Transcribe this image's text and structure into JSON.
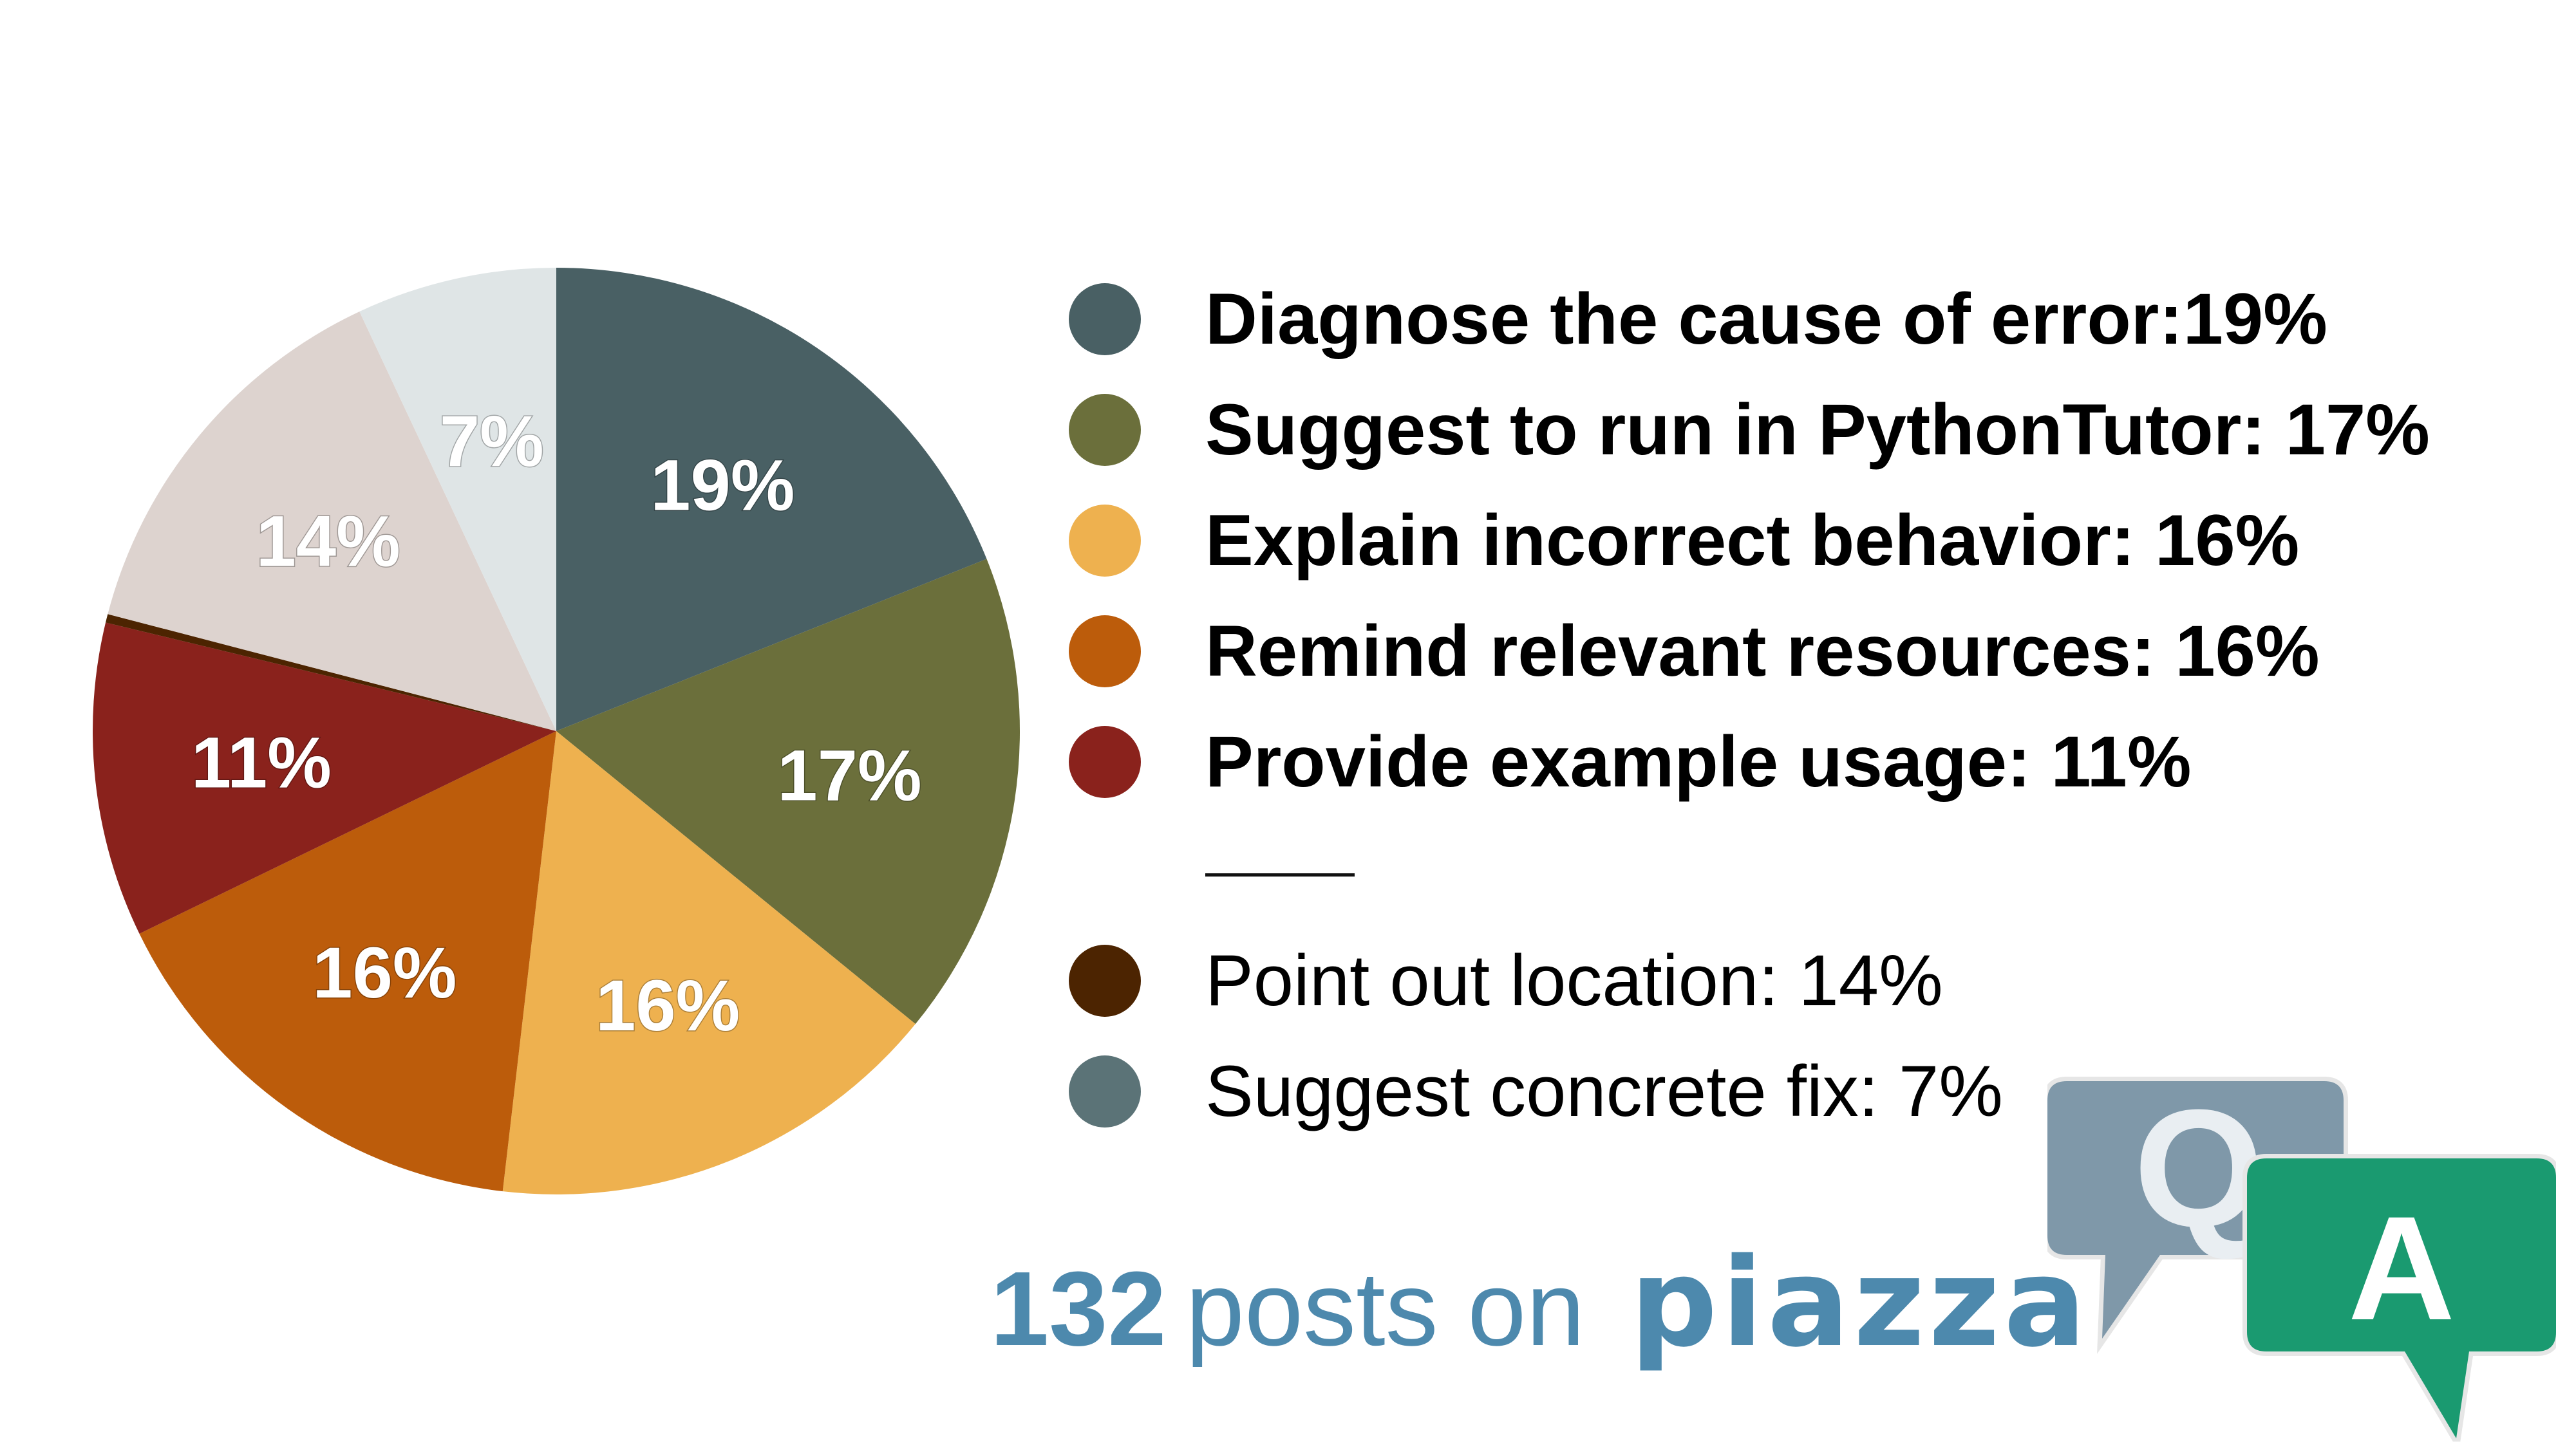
{
  "chart_data": {
    "type": "pie",
    "slices": [
      {
        "label": "19%",
        "value": 19,
        "color": "#496064"
      },
      {
        "label": "17%",
        "value": 17,
        "color": "#6b6f3b"
      },
      {
        "label": "16%",
        "value": 16,
        "color": "#eeb14f"
      },
      {
        "label": "16%",
        "value": 16,
        "color": "#bc5c0b"
      },
      {
        "label": "11%",
        "value": 11,
        "color": "#8a221c"
      },
      {
        "label": "",
        "value": 0.3,
        "color": "#4c2401"
      },
      {
        "label": "14%",
        "value": 14,
        "color": "#ddd3cf"
      },
      {
        "label": "7%",
        "value": 7,
        "color": "#dfe5e6"
      }
    ],
    "legend": [
      {
        "text": "Diagnose the cause of error:19%",
        "color": "#496064",
        "bold": true
      },
      {
        "text": "Suggest to run in PythonTutor: 17%",
        "color": "#6b6f3b",
        "bold": true
      },
      {
        "text": "Explain incorrect behavior: 16%",
        "color": "#eeb14f",
        "bold": true
      },
      {
        "text": "Remind relevant resources: 16%",
        "color": "#bc5c0b",
        "bold": true
      },
      {
        "text": "Provide example usage: 11%",
        "color": "#8a221c",
        "bold": true
      },
      {
        "text": "Point out location: 14%",
        "color": "#4c2401",
        "bold": false
      },
      {
        "text": "Suggest concrete fix: 7%",
        "color": "#5b7377",
        "bold": false
      }
    ],
    "legend_placement": "right"
  },
  "footer": {
    "count": "132",
    "text": "posts on",
    "logo": "piazza"
  },
  "qa_logo": {
    "q": "Q",
    "a": "A",
    "q_color": "#7f98a9",
    "a_color": "#1a9a70"
  }
}
